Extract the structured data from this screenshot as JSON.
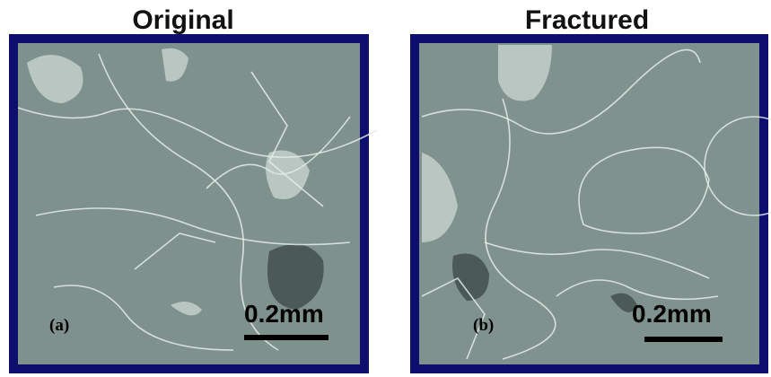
{
  "panels": [
    {
      "title": "Original",
      "label": "(a)",
      "scale": "0.2mm"
    },
    {
      "title": "Fractured",
      "label": "(b)",
      "scale": "0.2mm"
    }
  ]
}
